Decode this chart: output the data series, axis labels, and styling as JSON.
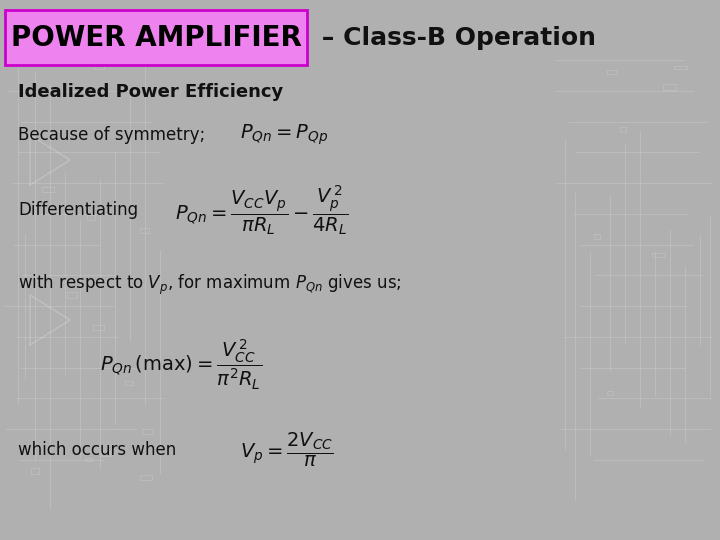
{
  "bg_color": "#b0b0b0",
  "title_box_text": "POWER AMPLIFIER",
  "title_box_bg": "#ee82ee",
  "title_box_border": "#cc00cc",
  "title_suffix": " – Class-B Operation",
  "title_suffix_color": "#111111",
  "title_text_color": "#000000",
  "subtitle": "Idealized Power Efficiency",
  "line1_text": "Because of symmetry;",
  "line1_formula": "$P_{Qn} = P_{Qp}$",
  "line2_text": "Differentiating",
  "line2_formula": "$P_{Qn} = \\dfrac{V_{CC}V_p}{\\pi R_L} - \\dfrac{V_p^{\\,2}}{4R_L}$",
  "line3_text": "with respect to $V_p$, for maximum $P_{Qn}$ gives us;",
  "line4_formula": "$P_{Qn}\\,(\\mathrm{max})= \\dfrac{V_{CC}^{\\,2}}{\\pi^2 R_L}$",
  "line5_text": "which occurs when",
  "line5_formula": "$V_p = \\dfrac{2V_{CC}}{\\pi}$",
  "figsize": [
    7.2,
    5.4
  ],
  "dpi": 100,
  "title_fontsize": 20,
  "suffix_fontsize": 18,
  "subtitle_fontsize": 13,
  "body_fontsize": 12,
  "math_fontsize": 13
}
